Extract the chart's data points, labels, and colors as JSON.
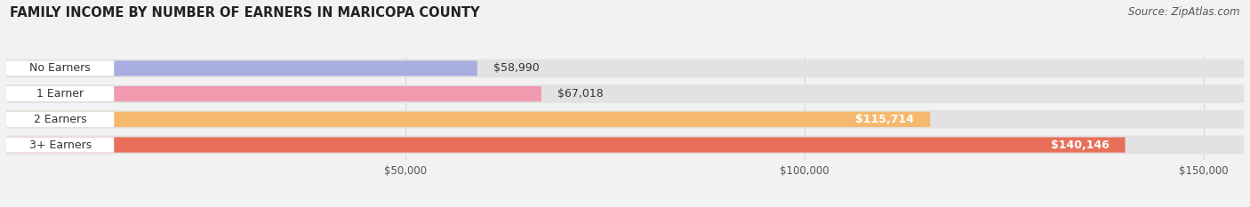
{
  "title": "FAMILY INCOME BY NUMBER OF EARNERS IN MARICOPA COUNTY",
  "source": "Source: ZipAtlas.com",
  "categories": [
    "No Earners",
    "1 Earner",
    "2 Earners",
    "3+ Earners"
  ],
  "values": [
    58990,
    67018,
    115714,
    140146
  ],
  "bar_colors": [
    "#a8aee0",
    "#f09ab0",
    "#f5b96e",
    "#e8705a"
  ],
  "label_colors": [
    "#444444",
    "#444444",
    "#444444",
    "#444444"
  ],
  "value_labels": [
    "$58,990",
    "$67,018",
    "$115,714",
    "$140,146"
  ],
  "value_label_inside": [
    false,
    false,
    true,
    true
  ],
  "xlim_max": 155000,
  "xticks": [
    50000,
    100000,
    150000
  ],
  "xtick_labels": [
    "$50,000",
    "$100,000",
    "$150,000"
  ],
  "title_fontsize": 10.5,
  "source_fontsize": 8.5,
  "bar_label_fontsize": 9,
  "value_label_fontsize": 9,
  "axis_label_fontsize": 8.5,
  "background_color": "#f2f2f2",
  "bg_bar_color": "#e2e2e2",
  "white_label_bg": "#ffffff"
}
